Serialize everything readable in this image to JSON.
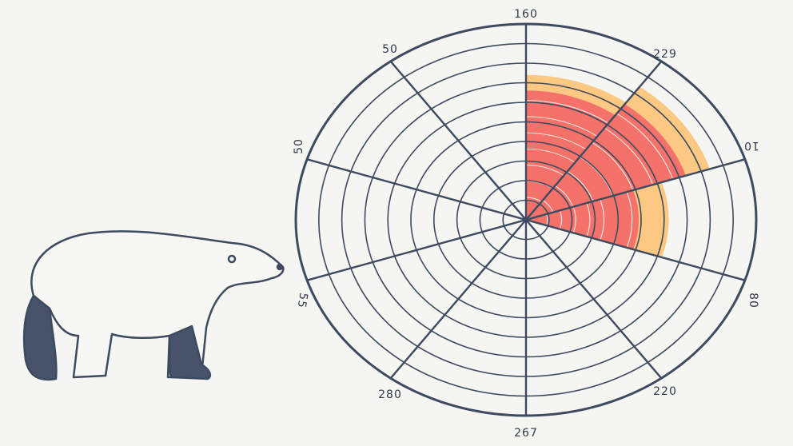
{
  "spoke_labels": [
    "160",
    "229",
    "10",
    "80",
    "220",
    "267",
    "280",
    "55",
    "50",
    "50"
  ]
}
